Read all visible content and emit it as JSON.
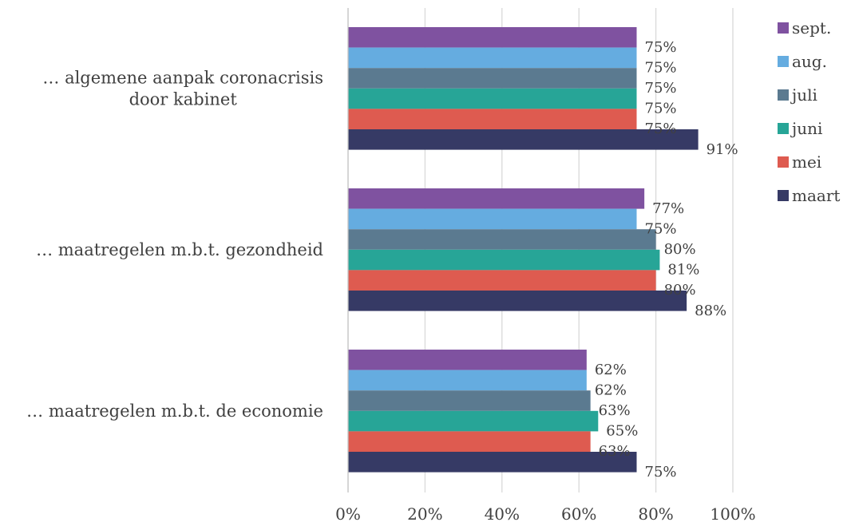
{
  "chart_data": {
    "type": "bar",
    "orientation": "horizontal",
    "categories": [
      [
        "… algemene aanpak coronacrisis",
        "door kabinet"
      ],
      [
        "… maatregelen m.b.t. gezondheid"
      ],
      [
        "… maatregelen m.b.t. de economie"
      ]
    ],
    "series": [
      {
        "name": "sept.",
        "color": "#7f52a0",
        "values": [
          75,
          77,
          62
        ]
      },
      {
        "name": "aug.",
        "color": "#65ace0",
        "values": [
          75,
          75,
          62
        ]
      },
      {
        "name": "juli",
        "color": "#5b7a90",
        "values": [
          75,
          80,
          63
        ]
      },
      {
        "name": "juni",
        "color": "#27a597",
        "values": [
          75,
          81,
          65
        ]
      },
      {
        "name": "mei",
        "color": "#de5b50",
        "values": [
          75,
          80,
          63
        ]
      },
      {
        "name": "maart",
        "color": "#363a65",
        "values": [
          91,
          88,
          75
        ]
      }
    ],
    "value_suffix": "%",
    "xlim": [
      0,
      100
    ],
    "xticks": [
      0,
      20,
      40,
      60,
      80,
      100
    ],
    "xtick_labels": [
      "0%",
      "20%",
      "40%",
      "60%",
      "80%",
      "100%"
    ],
    "grid": true,
    "legend_position": "top-right",
    "title": "",
    "xlabel": "",
    "ylabel": ""
  }
}
